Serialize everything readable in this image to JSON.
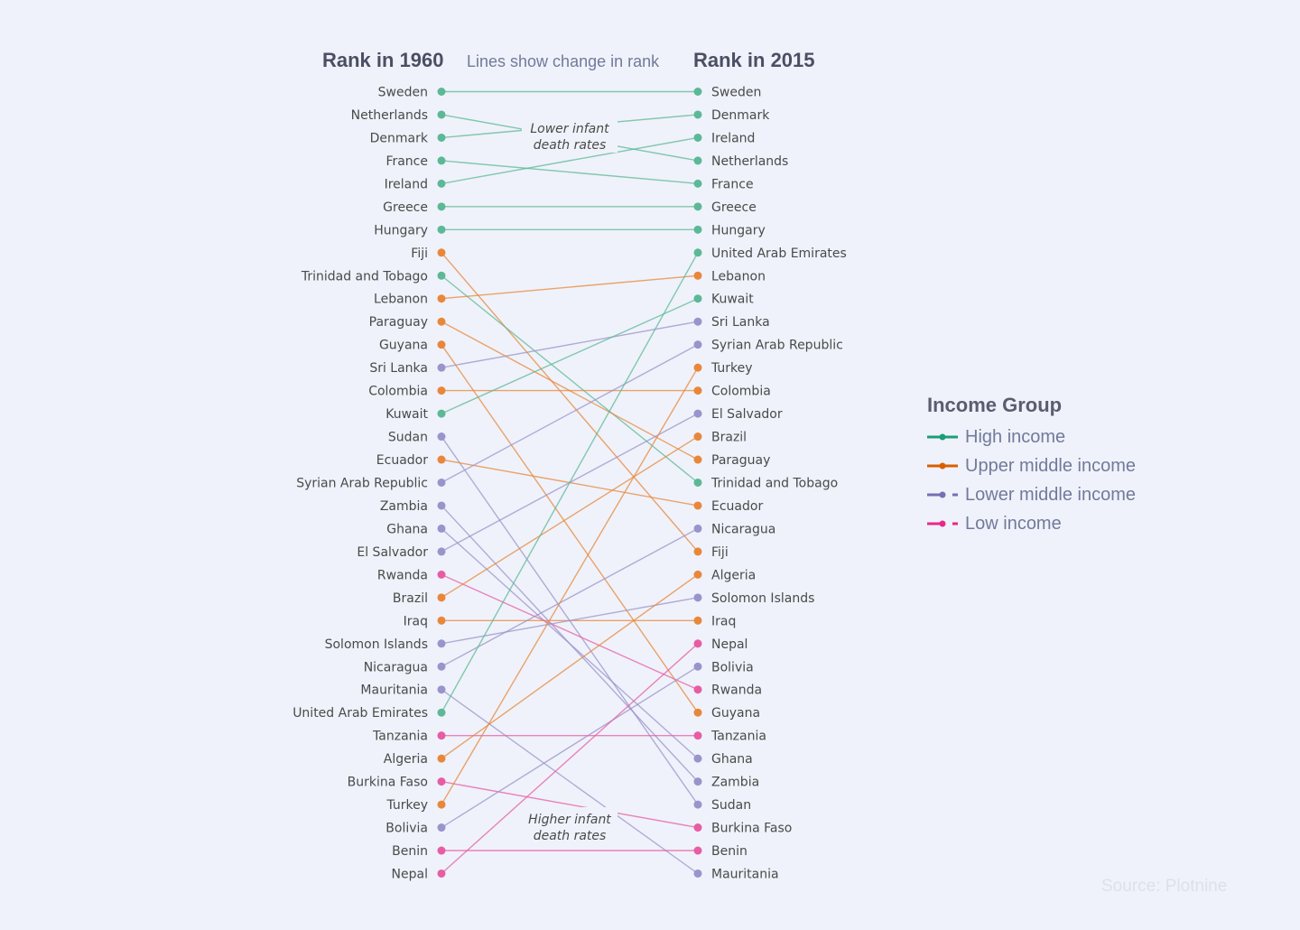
{
  "chart_data": {
    "type": "slope",
    "title_left": "Rank in 1960",
    "subtitle": "Lines show change in rank",
    "title_right": "Rank in 2015",
    "annotations": {
      "top": [
        "Lower infant",
        "death rates"
      ],
      "bottom": [
        "Higher infant",
        "death rates"
      ]
    },
    "legend_title": "Income Group",
    "legend": [
      {
        "name": "High income",
        "color": "#1b9e77",
        "dashed": false
      },
      {
        "name": "Upper middle income",
        "color": "#d95f02",
        "dashed": false
      },
      {
        "name": "Lower middle income",
        "color": "#7570b3",
        "dashed": true
      },
      {
        "name": "Low income",
        "color": "#e7298a",
        "dashed": true
      }
    ],
    "group_colors": {
      "High income": "#5cb896",
      "Upper middle income": "#e8873a",
      "Lower middle income": "#9b93cb",
      "Low income": "#e85ca4"
    },
    "rank_1960": [
      "Sweden",
      "Netherlands",
      "Denmark",
      "France",
      "Ireland",
      "Greece",
      "Hungary",
      "Fiji",
      "Trinidad and Tobago",
      "Lebanon",
      "Paraguay",
      "Guyana",
      "Sri Lanka",
      "Colombia",
      "Kuwait",
      "Sudan",
      "Ecuador",
      "Syrian Arab Republic",
      "Zambia",
      "Ghana",
      "El Salvador",
      "Rwanda",
      "Brazil",
      "Iraq",
      "Solomon Islands",
      "Nicaragua",
      "Mauritania",
      "United Arab Emirates",
      "Tanzania",
      "Algeria",
      "Burkina Faso",
      "Turkey",
      "Bolivia",
      "Benin",
      "Nepal"
    ],
    "rank_2015": [
      "Sweden",
      "Denmark",
      "Ireland",
      "Netherlands",
      "France",
      "Greece",
      "Hungary",
      "United Arab Emirates",
      "Lebanon",
      "Kuwait",
      "Sri Lanka",
      "Syrian Arab Republic",
      "Turkey",
      "Colombia",
      "El Salvador",
      "Brazil",
      "Paraguay",
      "Trinidad and Tobago",
      "Ecuador",
      "Nicaragua",
      "Fiji",
      "Algeria",
      "Solomon Islands",
      "Iraq",
      "Nepal",
      "Bolivia",
      "Rwanda",
      "Guyana",
      "Tanzania",
      "Ghana",
      "Zambia",
      "Sudan",
      "Burkina Faso",
      "Benin",
      "Mauritania"
    ],
    "income_group": {
      "Sweden": "High income",
      "Netherlands": "High income",
      "Denmark": "High income",
      "France": "High income",
      "Ireland": "High income",
      "Greece": "High income",
      "Hungary": "High income",
      "Trinidad and Tobago": "High income",
      "Kuwait": "High income",
      "United Arab Emirates": "High income",
      "Fiji": "Upper middle income",
      "Lebanon": "Upper middle income",
      "Paraguay": "Upper middle income",
      "Guyana": "Upper middle income",
      "Colombia": "Upper middle income",
      "Ecuador": "Upper middle income",
      "Brazil": "Upper middle income",
      "Iraq": "Upper middle income",
      "Algeria": "Upper middle income",
      "Turkey": "Upper middle income",
      "Sri Lanka": "Lower middle income",
      "Sudan": "Lower middle income",
      "Syrian Arab Republic": "Lower middle income",
      "Zambia": "Lower middle income",
      "Ghana": "Lower middle income",
      "El Salvador": "Lower middle income",
      "Solomon Islands": "Lower middle income",
      "Nicaragua": "Lower middle income",
      "Mauritania": "Lower middle income",
      "Bolivia": "Lower middle income",
      "Rwanda": "Low income",
      "Tanzania": "Low income",
      "Burkina Faso": "Low income",
      "Benin": "Low income",
      "Nepal": "Low income"
    }
  },
  "source": "Source: Plotnine"
}
